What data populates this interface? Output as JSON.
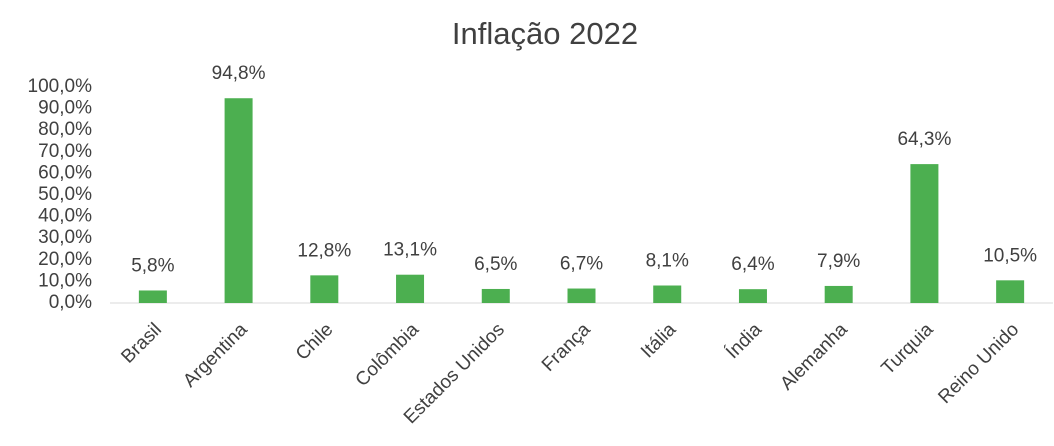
{
  "chart_data": {
    "type": "bar",
    "title": "Inflação 2022",
    "categories": [
      "Brasil",
      "Argentina",
      "Chile",
      "Colômbia",
      "Estados Unidos",
      "França",
      "Itália",
      "Índia",
      "Alemanha",
      "Turquia",
      "Reino Unido"
    ],
    "values": [
      5.8,
      94.8,
      12.8,
      13.1,
      6.5,
      6.7,
      8.1,
      6.4,
      7.9,
      64.3,
      10.5
    ],
    "value_labels": [
      "5,8%",
      "94,8%",
      "12,8%",
      "13,1%",
      "6,5%",
      "6,7%",
      "8,1%",
      "6,4%",
      "7,9%",
      "64,3%",
      "10,5%"
    ],
    "color": "#4caf50",
    "ylim": [
      0,
      100
    ],
    "yticks": [
      {
        "value": 0,
        "label": "0,0%"
      },
      {
        "value": 10,
        "label": "10,0%"
      },
      {
        "value": 20,
        "label": "20,0%"
      },
      {
        "value": 30,
        "label": "30,0%"
      },
      {
        "value": 40,
        "label": "40,0%"
      },
      {
        "value": 50,
        "label": "50,0%"
      },
      {
        "value": 60,
        "label": "60,0%"
      },
      {
        "value": 70,
        "label": "70,0%"
      },
      {
        "value": 80,
        "label": "80,0%"
      },
      {
        "value": 90,
        "label": "90,0%"
      },
      {
        "value": 100,
        "label": "100,0%"
      }
    ],
    "grid": false
  }
}
